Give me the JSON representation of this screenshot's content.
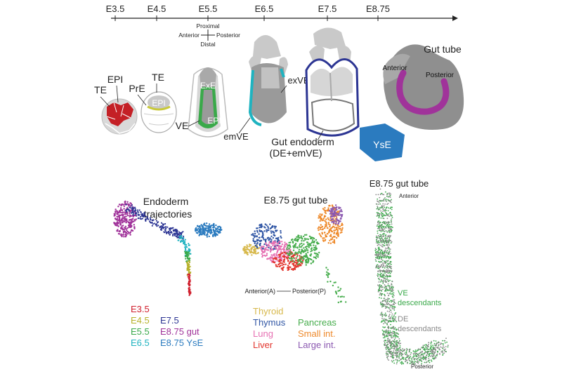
{
  "timeline": {
    "stages": [
      "E3.5",
      "E4.5",
      "E5.5",
      "E6.5",
      "E7.5",
      "E8.75"
    ]
  },
  "axes": {
    "proximal": "Proximal",
    "distal": "Distal",
    "anterior": "Anterior",
    "posterior": "Posterior"
  },
  "embryo_labels": {
    "te1": "TE",
    "epi1": "EPI",
    "pre": "PrE",
    "te2": "TE",
    "epi2": "EPI",
    "exe": "ExE",
    "epi3": "EPI",
    "ve": "VE",
    "emve": "emVE",
    "exve": "exVE",
    "gut_endoderm": "Gut endoderm",
    "gut_endoderm_sub": "(DE+emVE)",
    "yse": "YsE",
    "gut_tube": "Gut tube",
    "gt_anterior": "Anterior",
    "gt_posterior": "Posterior"
  },
  "panels": {
    "trajectories_title_1": "Endoderm",
    "trajectories_title_2": "trajectories",
    "gut_tube_title": "E8.75 gut tube",
    "ap_left": "Anterior(A)",
    "ap_right": "Posterior(P)",
    "spatial_title": "E8.75 gut tube",
    "spatial_anterior": "Anterior",
    "spatial_posterior": "Posterior",
    "ve_desc_1": "VE",
    "ve_desc_2": "descendants",
    "de_desc_1": "DE",
    "de_desc_2": "descendants"
  },
  "legend_stages": [
    {
      "label": "E3.5",
      "color": "#d0202e"
    },
    {
      "label": "E4.5",
      "color": "#b7b12a"
    },
    {
      "label": "E5.5",
      "color": "#3aa94a"
    },
    {
      "label": "E6.5",
      "color": "#1fb3c0"
    },
    {
      "label": "E7.5",
      "color": "#2c3593"
    },
    {
      "label": "E8.75 gut",
      "color": "#a0339a"
    },
    {
      "label": "E8.75 YsE",
      "color": "#2b7bbf"
    }
  ],
  "legend_organs": [
    {
      "label": "Thyroid",
      "color": "#d7b84a"
    },
    {
      "label": "Thymus",
      "color": "#2f55a4"
    },
    {
      "label": "Lung",
      "color": "#e671b3"
    },
    {
      "label": "Liver",
      "color": "#e2352d"
    },
    {
      "label": "Pancreas",
      "color": "#47ad4d"
    },
    {
      "label": "Small int.",
      "color": "#ee8a2c"
    },
    {
      "label": "Large int.",
      "color": "#8b58b0"
    }
  ],
  "colors": {
    "grey_light": "#c9c9c9",
    "grey_dark": "#8f8f8f",
    "epi_red": "#c42026",
    "pre_yellow": "#c9c93a",
    "ve_green": "#3aa94a",
    "emve_teal": "#1fb3c0",
    "exve_blue": "#2c3593",
    "gut_magenta": "#a0339a",
    "yse_blue": "#2b7bbf",
    "ve_desc_green": "#3aa94a",
    "de_desc_grey": "#8a8a8a"
  }
}
